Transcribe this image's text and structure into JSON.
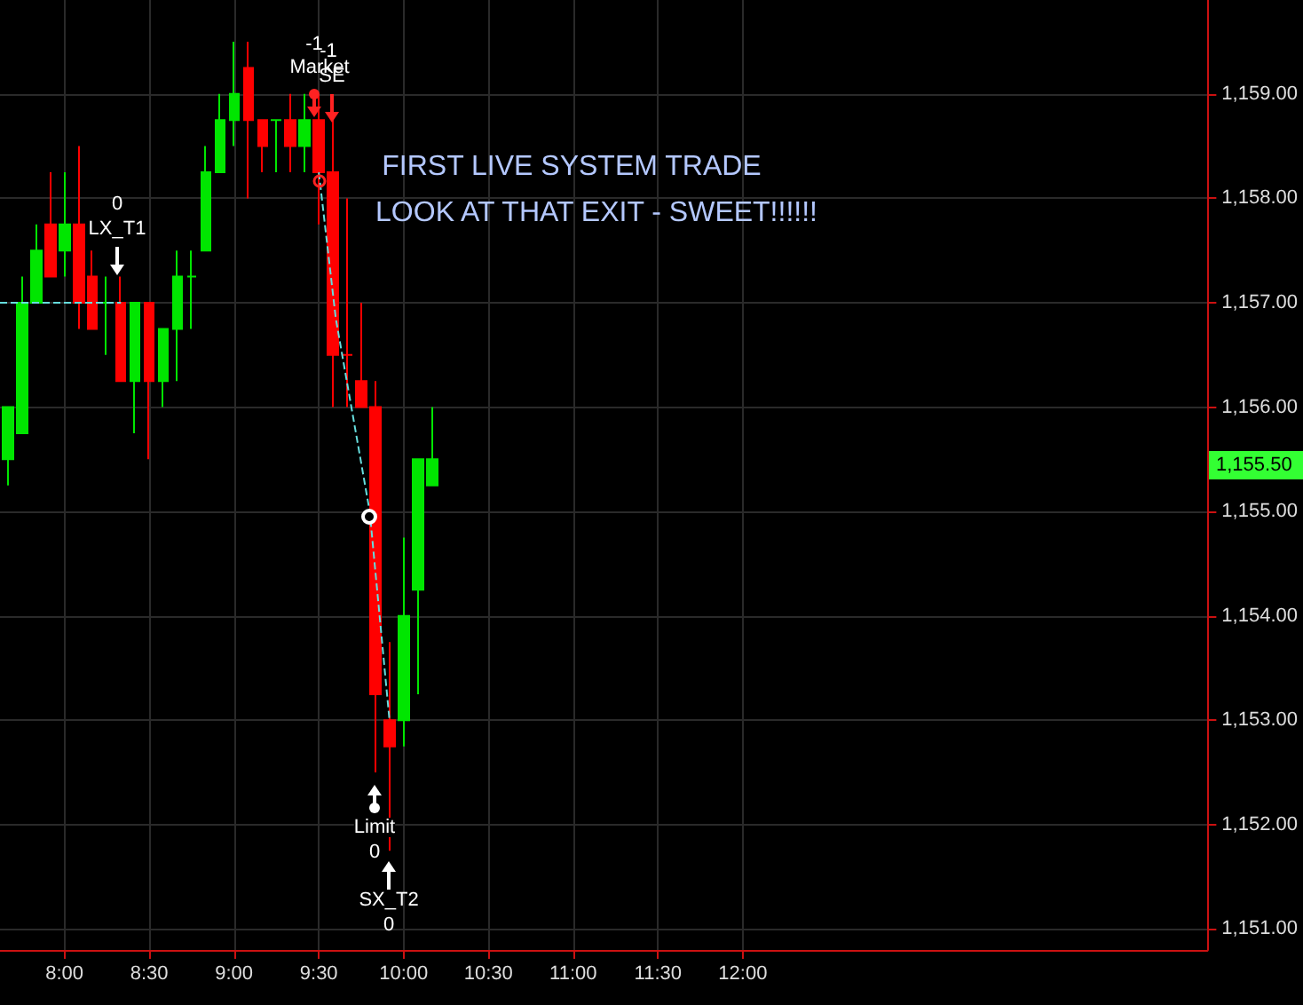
{
  "chart_data": {
    "type": "candlestick",
    "xlim": [
      7.62,
      14.74
    ],
    "ylim": [
      1150.8,
      1159.9
    ],
    "xticks": [
      {
        "value": 8,
        "label": "8:00"
      },
      {
        "value": 8.5,
        "label": "8:30"
      },
      {
        "value": 9,
        "label": "9:00"
      },
      {
        "value": 9.5,
        "label": "9:30"
      },
      {
        "value": 10,
        "label": "10:00"
      },
      {
        "value": 10.5,
        "label": "10:30"
      },
      {
        "value": 11,
        "label": "11:00"
      },
      {
        "value": 11.5,
        "label": "11:30"
      },
      {
        "value": 12,
        "label": "12:00"
      }
    ],
    "yticks": [
      {
        "value": 1151,
        "label": "1,151.00"
      },
      {
        "value": 1152,
        "label": "1,152.00"
      },
      {
        "value": 1153,
        "label": "1,153.00"
      },
      {
        "value": 1154,
        "label": "1,154.00"
      },
      {
        "value": 1155,
        "label": "1,155.00"
      },
      {
        "value": 1156,
        "label": "1,156.00"
      },
      {
        "value": 1157,
        "label": "1,157.00"
      },
      {
        "value": 1158,
        "label": "1,158.00"
      },
      {
        "value": 1159,
        "label": "1,159.00"
      }
    ],
    "grid": true,
    "series": [
      {
        "x": [
          7.6667,
          7.75,
          7.8333,
          7.9167,
          8,
          8.0833,
          8.1667,
          8.25,
          8.3333,
          8.4167,
          8.5,
          8.5833,
          8.6667,
          8.75,
          8.8333,
          8.9167,
          9,
          9.0833,
          9.1667,
          9.25,
          9.3333,
          9.4167,
          9.5,
          9.5833,
          9.6667,
          9.75,
          9.8333,
          9.9167,
          10,
          10.0833,
          10.1667
        ],
        "ohlc": [
          [
            1155.5,
            1156,
            1155.25,
            1156
          ],
          [
            1155.75,
            1157.25,
            1155.75,
            1157
          ],
          [
            1157,
            1157.75,
            1157,
            1157.5
          ],
          [
            1157.75,
            1158.25,
            1157.25,
            1157.25
          ],
          [
            1157.5,
            1158.25,
            1157.25,
            1157.75
          ],
          [
            1157.75,
            1158.5,
            1156.75,
            1157
          ],
          [
            1157.25,
            1157.5,
            1156.75,
            1156.75
          ],
          [
            1157,
            1157.25,
            1156.5,
            1157
          ],
          [
            1157,
            1157.25,
            1156.25,
            1156.25
          ],
          [
            1156.25,
            1157,
            1155.75,
            1157
          ],
          [
            1157,
            1157,
            1155.5,
            1156.25
          ],
          [
            1156.25,
            1156.75,
            1156,
            1156.75
          ],
          [
            1156.75,
            1157.5,
            1156.25,
            1157.25
          ],
          [
            1157.25,
            1157.5,
            1156.75,
            1157.25
          ],
          [
            1157.5,
            1158.5,
            1157.5,
            1158.25
          ],
          [
            1158.25,
            1159,
            1158.25,
            1158.75
          ],
          [
            1158.75,
            1159.5,
            1158.5,
            1159
          ],
          [
            1159.25,
            1159.5,
            1158,
            1158.75
          ],
          [
            1158.75,
            1158.75,
            1158.25,
            1158.5
          ],
          [
            1158.75,
            1158.75,
            1158.25,
            1158.75
          ],
          [
            1158.75,
            1159,
            1158.25,
            1158.5
          ],
          [
            1158.5,
            1159,
            1158.25,
            1158.75
          ],
          [
            1158.75,
            1159,
            1157.75,
            1158.25
          ],
          [
            1158.25,
            1158.75,
            1156,
            1156.5
          ],
          [
            1156.5,
            1158,
            1156,
            1156.5
          ],
          [
            1156.25,
            1157,
            1156,
            1156
          ],
          [
            1156,
            1156.25,
            1152.5,
            1153.25
          ],
          [
            1153,
            1153.75,
            1151.75,
            1152.75
          ],
          [
            1153,
            1154.75,
            1152.75,
            1154
          ],
          [
            1154.25,
            1155.5,
            1153.25,
            1155.5
          ],
          [
            1155.25,
            1156,
            1155.25,
            1155.5
          ]
        ],
        "colors": [
          "#00e600",
          "#00e600",
          "#00e600",
          "#ff0000",
          "#00e600",
          "#ff0000",
          "#ff0000",
          "#00e600",
          "#ff0000",
          "#00e600",
          "#ff0000",
          "#00e600",
          "#00e600",
          "#00e600",
          "#00e600",
          "#00e600",
          "#00e600",
          "#ff0000",
          "#ff0000",
          "#00e600",
          "#ff0000",
          "#00e600",
          "#ff0000",
          "#ff0000",
          "#ff0000",
          "#ff0000",
          "#ff0000",
          "#ff0000",
          "#00e600",
          "#00e600",
          "#00e600"
        ]
      },
      {
        "type": "line",
        "color": "#66dddd",
        "line_style": "dashed",
        "x": [
          7.62,
          8.3333
        ],
        "values": [
          1157,
          1157
        ]
      },
      {
        "type": "line",
        "color": "#66dddd",
        "line_style": "dashed",
        "x": [
          9.5,
          9.6,
          9.8,
          9.9167
        ],
        "values": [
          1158.25,
          1156.85,
          1155,
          1153
        ]
      }
    ],
    "annotations": [
      "0",
      "LX_T1",
      "-1",
      "-1",
      "Market",
      "SE",
      "Limit",
      "0",
      "SX_T2",
      "0",
      "FIRST LIVE SYSTEM TRADE",
      "LOOK AT THAT EXIT - SWEET!!!!!!",
      "1,155.50"
    ]
  }
}
